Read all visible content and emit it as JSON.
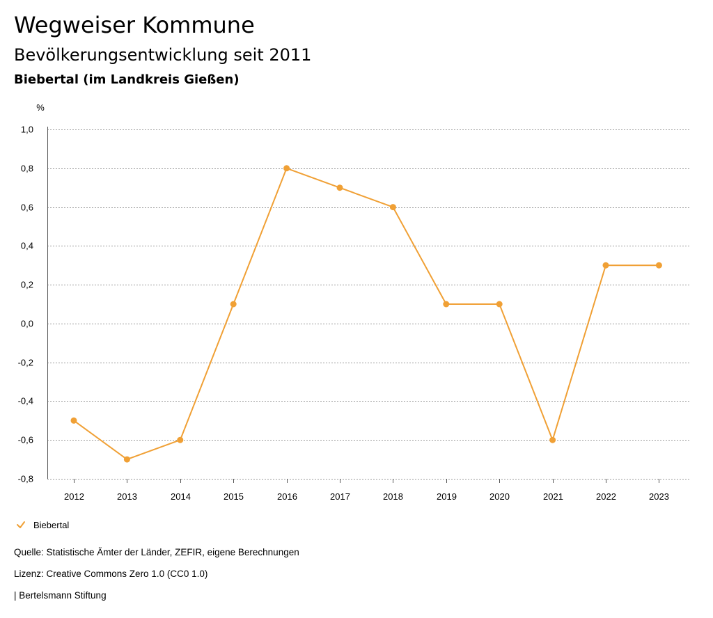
{
  "header": {
    "title": "Wegweiser Kommune",
    "subtitle": "Bevölkerungsentwicklung seit 2011",
    "region": "Biebertal (im Landkreis Gießen)"
  },
  "colors": {
    "series": "#f0a035",
    "grid": "#9a9a9a",
    "text": "#000000"
  },
  "chart_data": {
    "type": "line",
    "unit_label": "%",
    "x": [
      "2012",
      "2013",
      "2014",
      "2015",
      "2016",
      "2017",
      "2018",
      "2019",
      "2020",
      "2021",
      "2022",
      "2023"
    ],
    "series": [
      {
        "name": "Biebertal",
        "values": [
          -0.5,
          -0.7,
          -0.6,
          0.1,
          0.8,
          0.7,
          0.6,
          0.1,
          0.1,
          -0.6,
          0.3,
          0.3
        ]
      }
    ],
    "ylim": [
      -0.8,
      1.0
    ],
    "y_ticks": [
      1.0,
      0.8,
      0.6,
      0.4,
      0.2,
      0.0,
      -0.2,
      -0.4,
      -0.6,
      -0.8
    ],
    "y_tick_labels": [
      "1,0",
      "0,8",
      "0,6",
      "0,4",
      "0,2",
      "0,0",
      "-0,2",
      "-0,4",
      "-0,6",
      "-0,8"
    ],
    "grid": true,
    "legend_position": "bottom-left"
  },
  "legend": {
    "items": [
      {
        "label": "Biebertal",
        "icon": "check-icon"
      }
    ]
  },
  "footer": {
    "source": "Quelle: Statistische Ämter der Länder, ZEFIR, eigene Berechnungen",
    "license": "Lizenz: Creative Commons Zero 1.0 (CC0 1.0)",
    "publisher": "| Bertelsmann Stiftung"
  }
}
